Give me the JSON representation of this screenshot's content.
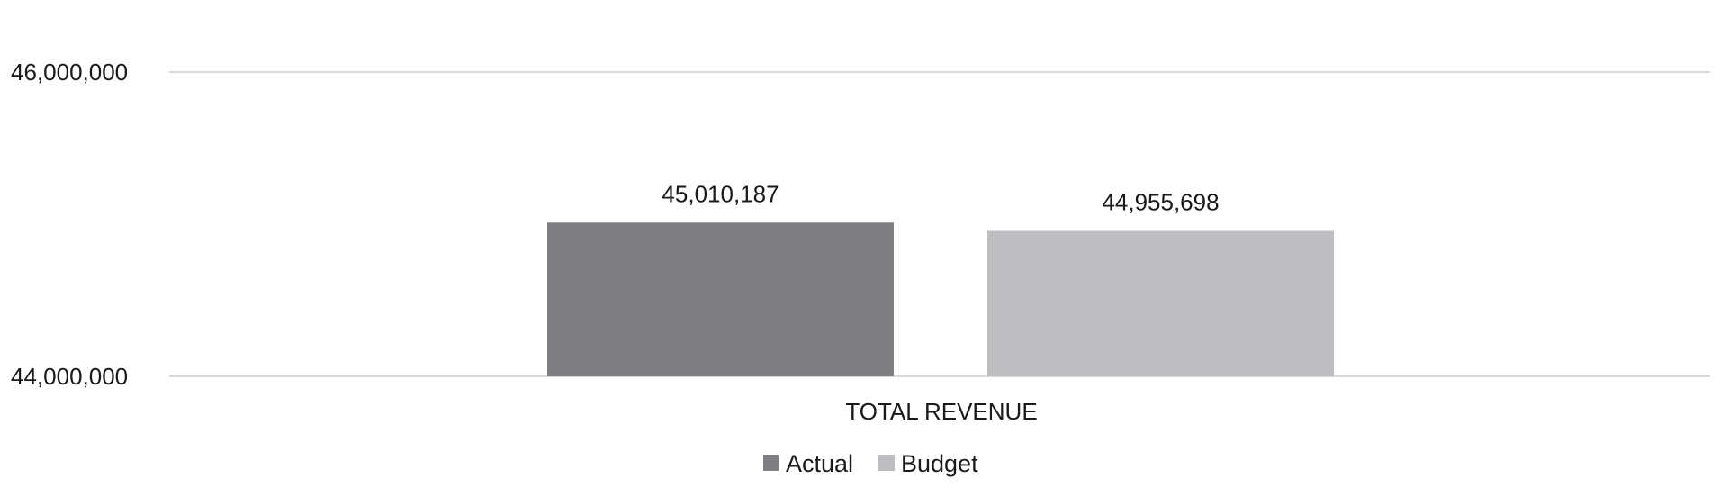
{
  "chart_data": {
    "type": "bar",
    "title": "",
    "xlabel": "",
    "ylabel": "",
    "categories": [
      "TOTAL REVENUE"
    ],
    "series": [
      {
        "name": "Actual",
        "values": [
          45010187
        ],
        "color": "#7e7f82",
        "labels": [
          "45,010,187"
        ]
      },
      {
        "name": "Budget",
        "values": [
          44955698
        ],
        "color": "#bdbec1",
        "labels": [
          "44,955,698"
        ]
      }
    ],
    "ylim": [
      44000000,
      46000000
    ],
    "yticks": [
      {
        "value": 44000000,
        "label": "44,000,000"
      },
      {
        "value": 46000000,
        "label": "46,000,000"
      }
    ],
    "grid": true,
    "grid_color": "#d9d9d9",
    "legend_position": "bottom"
  }
}
